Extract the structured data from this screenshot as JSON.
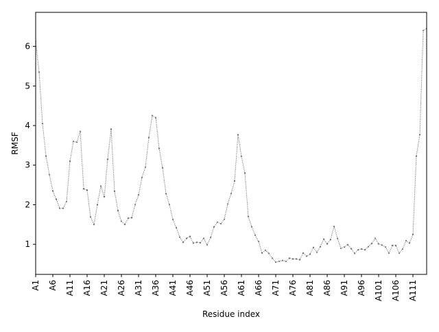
{
  "chart_data": {
    "type": "line",
    "title": "",
    "xlabel": "Residue index",
    "ylabel": "RMSF",
    "xlim": [
      1,
      115
    ],
    "ylim": [
      0.24,
      6.86
    ],
    "yticks": [
      1,
      2,
      3,
      4,
      5,
      6
    ],
    "xtick_labels": [
      "A1",
      "A6",
      "A11",
      "A16",
      "A21",
      "A26",
      "A31",
      "A36",
      "A41",
      "A46",
      "A51",
      "A56",
      "A61",
      "A66",
      "A71",
      "A76",
      "A81",
      "A86",
      "A91",
      "A96",
      "A101",
      "A106",
      "A111"
    ],
    "grid": false,
    "legend": "none",
    "line_color": "#6e6e6e",
    "line_style": "dotted",
    "marker": "dot",
    "series": [
      {
        "x": [
          1,
          2,
          3,
          4,
          5,
          6,
          7,
          8,
          9,
          10,
          11,
          12,
          13,
          14,
          15,
          16,
          17,
          18,
          19,
          20,
          21,
          22,
          23,
          24,
          25,
          26,
          27,
          28,
          29,
          30,
          31,
          32,
          33,
          34,
          35,
          36,
          37,
          38,
          39,
          40,
          41,
          42,
          43,
          44,
          45,
          46,
          47,
          48,
          49,
          50,
          51,
          52,
          53,
          54,
          55,
          56,
          57,
          58,
          59,
          60,
          61,
          62,
          63,
          64,
          65,
          66,
          67,
          68,
          69,
          70,
          71,
          72,
          73,
          74,
          75,
          76,
          77,
          78,
          79,
          80,
          81,
          82,
          83,
          84,
          85,
          86,
          87,
          88,
          89,
          90,
          91,
          92,
          93,
          94,
          95,
          96,
          97,
          98,
          99,
          100,
          101,
          102,
          103,
          104,
          105,
          106,
          107,
          108,
          109,
          110,
          111,
          112,
          113,
          114,
          115
        ],
        "values": [
          6.13,
          5.35,
          4.05,
          3.23,
          2.76,
          2.35,
          2.14,
          1.91,
          1.91,
          2.08,
          3.1,
          3.6,
          3.58,
          3.85,
          2.4,
          2.37,
          1.69,
          1.5,
          2.0,
          2.47,
          2.2,
          3.15,
          3.91,
          2.34,
          1.85,
          1.58,
          1.5,
          1.66,
          1.67,
          2.0,
          2.25,
          2.69,
          2.95,
          3.7,
          4.25,
          4.2,
          3.42,
          2.93,
          2.28,
          2.0,
          1.63,
          1.42,
          1.18,
          1.05,
          1.15,
          1.2,
          1.03,
          1.05,
          1.04,
          1.15,
          0.99,
          1.17,
          1.44,
          1.56,
          1.52,
          1.63,
          2.02,
          2.28,
          2.6,
          3.77,
          3.22,
          2.8,
          1.7,
          1.44,
          1.23,
          1.07,
          0.78,
          0.85,
          0.77,
          0.65,
          0.55,
          0.57,
          0.59,
          0.57,
          0.65,
          0.63,
          0.63,
          0.61,
          0.78,
          0.7,
          0.75,
          0.92,
          0.8,
          0.94,
          1.13,
          1.01,
          1.12,
          1.45,
          1.15,
          0.9,
          0.93,
          0.99,
          0.89,
          0.77,
          0.86,
          0.88,
          0.86,
          0.94,
          1.02,
          1.15,
          1.01,
          0.98,
          0.93,
          0.78,
          0.97,
          0.97,
          0.78,
          0.88,
          1.09,
          1.03,
          1.25,
          3.23,
          3.77,
          6.4,
          6.45
        ]
      }
    ]
  }
}
